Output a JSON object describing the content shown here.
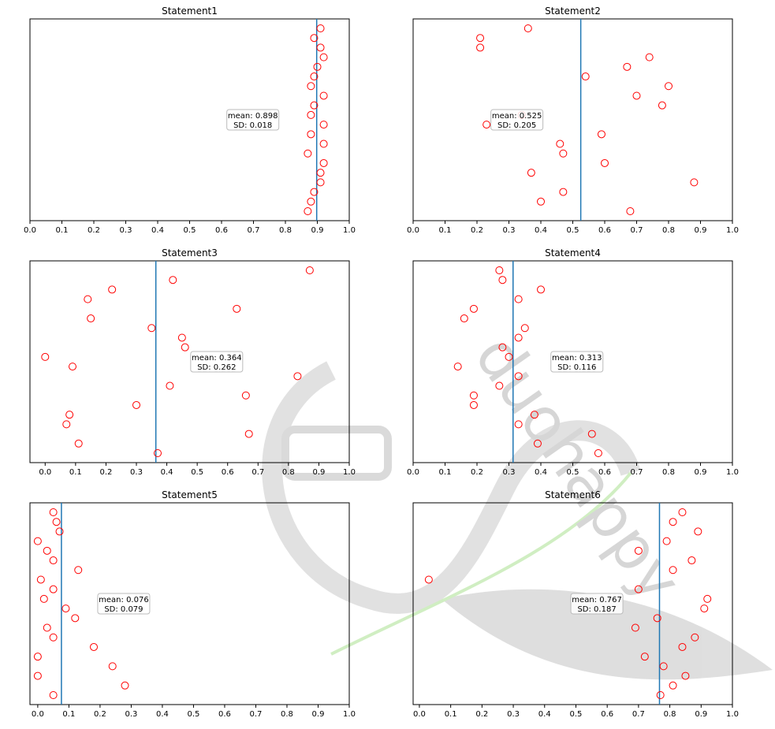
{
  "figure": {
    "background": "#ffffff",
    "marker_color": "#ff0000",
    "mean_line_color": "#1f77b4"
  },
  "watermark": {
    "text": "duohappy",
    "color": "#c9c9c9",
    "outline_color": "#b8e6a8"
  },
  "chart_data": [
    {
      "type": "scatter",
      "title": "Statement1",
      "xlim": [
        0,
        1
      ],
      "xticks": [
        "0.0",
        "0.1",
        "0.2",
        "0.3",
        "0.4",
        "0.5",
        "0.6",
        "0.7",
        "0.8",
        "0.9",
        "1.0"
      ],
      "x": [
        0.91,
        0.89,
        0.91,
        0.92,
        0.9,
        0.89,
        0.88,
        0.92,
        0.89,
        0.88,
        0.92,
        0.88,
        0.92,
        0.87,
        0.92,
        0.91,
        0.91,
        0.89,
        0.88,
        0.87
      ],
      "mean": 0.898,
      "annotation": {
        "line1": "mean: 0.898",
        "line2": "SD: 0.018",
        "x": 0.698
      }
    },
    {
      "type": "scatter",
      "title": "Statement2",
      "xlim": [
        0,
        1
      ],
      "xticks": [
        "0.0",
        "0.1",
        "0.2",
        "0.3",
        "0.4",
        "0.5",
        "0.6",
        "0.7",
        "0.8",
        "0.9",
        "1.0"
      ],
      "x": [
        0.36,
        0.21,
        0.21,
        0.74,
        0.67,
        0.54,
        0.8,
        0.7,
        0.78,
        0.34,
        0.23,
        0.59,
        0.46,
        0.47,
        0.6,
        0.37,
        0.88,
        0.47,
        0.4,
        0.68
      ],
      "mean": 0.525,
      "annotation": {
        "line1": "mean: 0.525",
        "line2": "SD: 0.205",
        "x": 0.325
      }
    },
    {
      "type": "scatter",
      "title": "Statement3",
      "xlim": [
        -0.05,
        1
      ],
      "xticks": [
        "0.0",
        "0.1",
        "0.2",
        "0.3",
        "0.4",
        "0.5",
        "0.6",
        "0.7",
        "0.8",
        "0.9",
        "1.0"
      ],
      "x": [
        0.87,
        0.42,
        0.22,
        0.14,
        0.63,
        0.15,
        0.35,
        0.45,
        0.46,
        0.0,
        0.09,
        0.83,
        0.41,
        0.66,
        0.3,
        0.08,
        0.07,
        0.67,
        0.11,
        0.37
      ],
      "mean": 0.364,
      "annotation": {
        "line1": "mean: 0.364",
        "line2": "SD: 0.262",
        "x": 0.564
      }
    },
    {
      "type": "scatter",
      "title": "Statement4",
      "xlim": [
        0,
        1
      ],
      "xticks": [
        "0.0",
        "0.1",
        "0.2",
        "0.3",
        "0.4",
        "0.5",
        "0.6",
        "0.7",
        "0.8",
        "0.9",
        "1.0"
      ],
      "x": [
        0.27,
        0.28,
        0.4,
        0.33,
        0.19,
        0.16,
        0.35,
        0.33,
        0.28,
        0.3,
        0.14,
        0.33,
        0.27,
        0.19,
        0.19,
        0.38,
        0.33,
        0.56,
        0.39,
        0.58
      ],
      "mean": 0.313,
      "annotation": {
        "line1": "mean: 0.313",
        "line2": "SD: 0.116",
        "x": 0.513
      }
    },
    {
      "type": "scatter",
      "title": "Statement5",
      "xlim": [
        -0.025,
        1
      ],
      "xticks": [
        "0.0",
        "0.1",
        "0.2",
        "0.3",
        "0.4",
        "0.5",
        "0.6",
        "0.7",
        "0.8",
        "0.9",
        "1.0"
      ],
      "x": [
        0.05,
        0.06,
        0.07,
        0.0,
        0.03,
        0.05,
        0.13,
        0.01,
        0.05,
        0.02,
        0.09,
        0.12,
        0.03,
        0.05,
        0.18,
        0.0,
        0.24,
        0.0,
        0.28,
        0.05
      ],
      "mean": 0.076,
      "annotation": {
        "line1": "mean: 0.076",
        "line2": "SD: 0.079",
        "x": 0.276
      }
    },
    {
      "type": "scatter",
      "title": "Statement6",
      "xlim": [
        -0.02,
        1
      ],
      "xticks": [
        "0.0",
        "0.1",
        "0.2",
        "0.3",
        "0.4",
        "0.5",
        "0.6",
        "0.7",
        "0.8",
        "0.9",
        "1.0"
      ],
      "x": [
        0.84,
        0.81,
        0.89,
        0.79,
        0.7,
        0.87,
        0.81,
        0.03,
        0.7,
        0.92,
        0.91,
        0.76,
        0.69,
        0.88,
        0.84,
        0.72,
        0.78,
        0.85,
        0.81,
        0.77
      ],
      "mean": 0.767,
      "annotation": {
        "line1": "mean: 0.767",
        "line2": "SD: 0.187",
        "x": 0.567
      }
    }
  ]
}
